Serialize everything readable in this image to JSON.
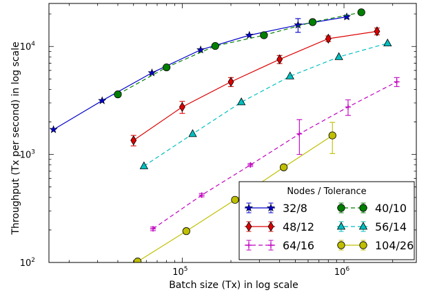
{
  "chart_data": {
    "type": "line",
    "xlabel": "Batch size (Tx) in log scale",
    "ylabel": "Throughput (Tx per second) in log scale",
    "x_scale": "log",
    "y_scale": "log",
    "xlim": [
      15000,
      2800000
    ],
    "ylim": [
      100,
      25000
    ],
    "x_ticks": [
      {
        "value": 100000,
        "base": "10",
        "exp": "5"
      },
      {
        "value": 1000000,
        "base": "10",
        "exp": "6"
      }
    ],
    "y_ticks": [
      {
        "value": 100,
        "base": "10",
        "exp": "2"
      },
      {
        "value": 1000,
        "base": "10",
        "exp": "3"
      },
      {
        "value": 10000,
        "base": "10",
        "exp": "4"
      }
    ],
    "legend": {
      "title": "Nodes / Tolerance",
      "placement": "bottom-right",
      "columns": 2
    },
    "series": [
      {
        "name": "32/8",
        "color": "#0000cc",
        "dash": "solid",
        "marker": "star",
        "points": [
          {
            "x": 16000,
            "y": 1700,
            "err": 0
          },
          {
            "x": 32000,
            "y": 3150,
            "err": 0
          },
          {
            "x": 65000,
            "y": 5700,
            "err": 0
          },
          {
            "x": 130000,
            "y": 9300,
            "err": 0
          },
          {
            "x": 260000,
            "y": 12700,
            "err": 0
          },
          {
            "x": 520000,
            "y": 15800,
            "err": 2300
          },
          {
            "x": 1040000,
            "y": 18800,
            "err": 700
          }
        ]
      },
      {
        "name": "40/10",
        "color": "#007f00",
        "dash": "dashed",
        "marker": "circle",
        "points": [
          {
            "x": 40000,
            "y": 3600,
            "err": 0
          },
          {
            "x": 80000,
            "y": 6400,
            "err": 0
          },
          {
            "x": 160000,
            "y": 10100,
            "err": 0
          },
          {
            "x": 320000,
            "y": 12700,
            "err": 0
          },
          {
            "x": 640000,
            "y": 16800,
            "err": 0
          },
          {
            "x": 1280000,
            "y": 20700,
            "err": 0
          }
        ]
      },
      {
        "name": "48/12",
        "color": "#dd0000",
        "dash": "solid",
        "marker": "diamond",
        "points": [
          {
            "x": 50000,
            "y": 1350,
            "err": 150
          },
          {
            "x": 100000,
            "y": 2750,
            "err": 350
          },
          {
            "x": 200000,
            "y": 4700,
            "err": 450
          },
          {
            "x": 400000,
            "y": 7600,
            "err": 650
          },
          {
            "x": 800000,
            "y": 11800,
            "err": 700
          },
          {
            "x": 1600000,
            "y": 13800,
            "err": 1000
          }
        ]
      },
      {
        "name": "56/14",
        "color": "#00bfbf",
        "dash": "dashed",
        "marker": "triangle",
        "points": [
          {
            "x": 58000,
            "y": 780,
            "err": 0
          },
          {
            "x": 116000,
            "y": 1550,
            "err": 0
          },
          {
            "x": 232000,
            "y": 3050,
            "err": 0
          },
          {
            "x": 464000,
            "y": 5300,
            "err": 0
          },
          {
            "x": 930000,
            "y": 8000,
            "err": 0
          },
          {
            "x": 1860000,
            "y": 10700,
            "err": 0
          }
        ]
      },
      {
        "name": "64/16",
        "color": "#bf00bf",
        "dash": "dashed",
        "marker": "plus",
        "points": [
          {
            "x": 66000,
            "y": 205,
            "err": 8
          },
          {
            "x": 132000,
            "y": 420,
            "err": 15
          },
          {
            "x": 264000,
            "y": 800,
            "err": 25
          },
          {
            "x": 530000,
            "y": 1550,
            "err": 550
          },
          {
            "x": 1060000,
            "y": 2750,
            "err": 450
          },
          {
            "x": 2120000,
            "y": 4700,
            "err": 450
          }
        ]
      },
      {
        "name": "104/26",
        "color": "#bfbf00",
        "dash": "solid",
        "marker": "circle",
        "points": [
          {
            "x": 53000,
            "y": 102,
            "err": 0
          },
          {
            "x": 106000,
            "y": 195,
            "err": 0
          },
          {
            "x": 212000,
            "y": 380,
            "err": 0
          },
          {
            "x": 424000,
            "y": 760,
            "err": 0
          },
          {
            "x": 848000,
            "y": 1500,
            "err": 480
          }
        ]
      }
    ]
  }
}
